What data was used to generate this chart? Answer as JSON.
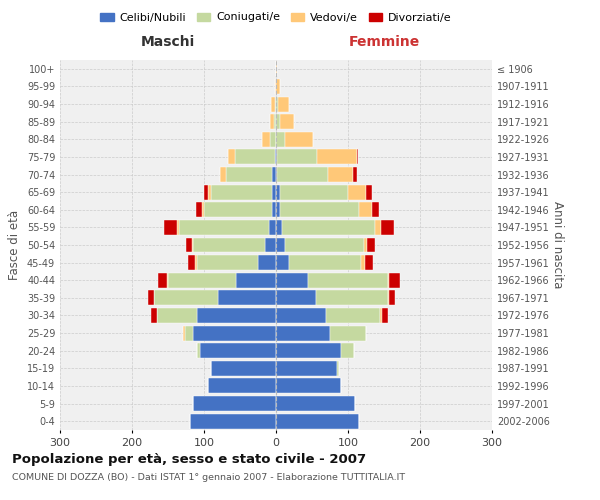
{
  "age_groups": [
    "0-4",
    "5-9",
    "10-14",
    "15-19",
    "20-24",
    "25-29",
    "30-34",
    "35-39",
    "40-44",
    "45-49",
    "50-54",
    "55-59",
    "60-64",
    "65-69",
    "70-74",
    "75-79",
    "80-84",
    "85-89",
    "90-94",
    "95-99",
    "100+"
  ],
  "birth_years": [
    "2002-2006",
    "1997-2001",
    "1992-1996",
    "1987-1991",
    "1982-1986",
    "1977-1981",
    "1972-1976",
    "1967-1971",
    "1962-1966",
    "1957-1961",
    "1952-1956",
    "1947-1951",
    "1942-1946",
    "1937-1941",
    "1932-1936",
    "1927-1931",
    "1922-1926",
    "1917-1921",
    "1912-1916",
    "1907-1911",
    "≤ 1906"
  ],
  "colors": {
    "celibi": "#4472c4",
    "coniugati": "#c5d9a0",
    "vedovi": "#ffc878",
    "divorziati": "#cc0000"
  },
  "males": {
    "celibi": [
      120,
      115,
      95,
      90,
      105,
      115,
      110,
      80,
      55,
      25,
      15,
      10,
      5,
      5,
      5,
      2,
      0,
      0,
      0,
      0,
      0
    ],
    "coniugati": [
      0,
      0,
      0,
      0,
      5,
      12,
      55,
      90,
      95,
      85,
      100,
      125,
      95,
      85,
      65,
      55,
      8,
      3,
      2,
      0,
      0
    ],
    "vedovi": [
      0,
      0,
      0,
      0,
      0,
      2,
      0,
      0,
      2,
      2,
      2,
      2,
      3,
      5,
      8,
      10,
      12,
      5,
      5,
      2,
      0
    ],
    "divorziati": [
      0,
      0,
      0,
      0,
      0,
      0,
      8,
      8,
      12,
      10,
      8,
      18,
      8,
      5,
      0,
      0,
      0,
      0,
      0,
      0,
      0
    ]
  },
  "females": {
    "nubili": [
      115,
      110,
      90,
      85,
      90,
      75,
      70,
      55,
      45,
      18,
      12,
      8,
      5,
      5,
      2,
      2,
      0,
      0,
      0,
      0,
      0
    ],
    "coniugate": [
      0,
      0,
      0,
      2,
      18,
      50,
      75,
      100,
      110,
      100,
      110,
      130,
      110,
      95,
      70,
      55,
      12,
      5,
      3,
      0,
      0
    ],
    "vedove": [
      0,
      0,
      0,
      0,
      0,
      0,
      2,
      2,
      2,
      5,
      5,
      8,
      18,
      25,
      35,
      55,
      40,
      20,
      15,
      5,
      2
    ],
    "divorziate": [
      0,
      0,
      0,
      0,
      0,
      0,
      8,
      8,
      15,
      12,
      10,
      18,
      10,
      8,
      5,
      2,
      0,
      0,
      0,
      0,
      0
    ]
  },
  "xlim": 300,
  "title": "Popolazione per età, sesso e stato civile - 2007",
  "subtitle": "COMUNE DI DOZZA (BO) - Dati ISTAT 1° gennaio 2007 - Elaborazione TUTTITALIA.IT",
  "xlabel_left": "Maschi",
  "xlabel_right": "Femmine",
  "ylabel_left": "Fasce di età",
  "ylabel_right": "Anni di nascita",
  "bg_color": "#f0f0f0",
  "grid_color": "#cccccc"
}
